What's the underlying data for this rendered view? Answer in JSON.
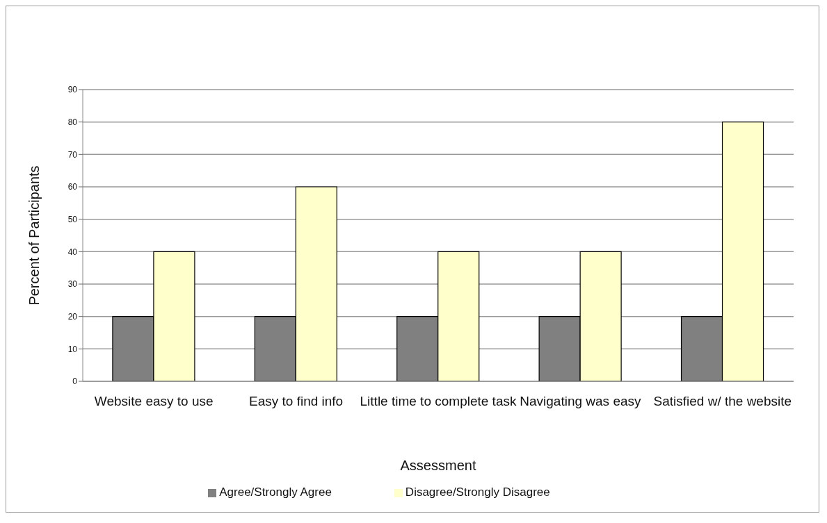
{
  "chart_data": {
    "type": "bar",
    "xlabel": "Assessment",
    "ylabel": "Percent of Participants",
    "categories": [
      "Website easy to use",
      "Easy to find info",
      "Little time to complete task",
      "Navigating was easy",
      "Satisfied w/ the website"
    ],
    "series": [
      {
        "name": "Agree/Strongly Agree",
        "color": "#808080",
        "values": [
          20,
          20,
          20,
          20,
          20
        ]
      },
      {
        "name": "Disagree/Strongly Disagree",
        "color": "#ffffcc",
        "values": [
          40,
          60,
          40,
          40,
          80
        ]
      }
    ],
    "ylim": [
      0,
      90
    ],
    "yticks": [
      0,
      10,
      20,
      30,
      40,
      50,
      60,
      70,
      80,
      90
    ],
    "grid": "y",
    "legend": "bottom"
  }
}
